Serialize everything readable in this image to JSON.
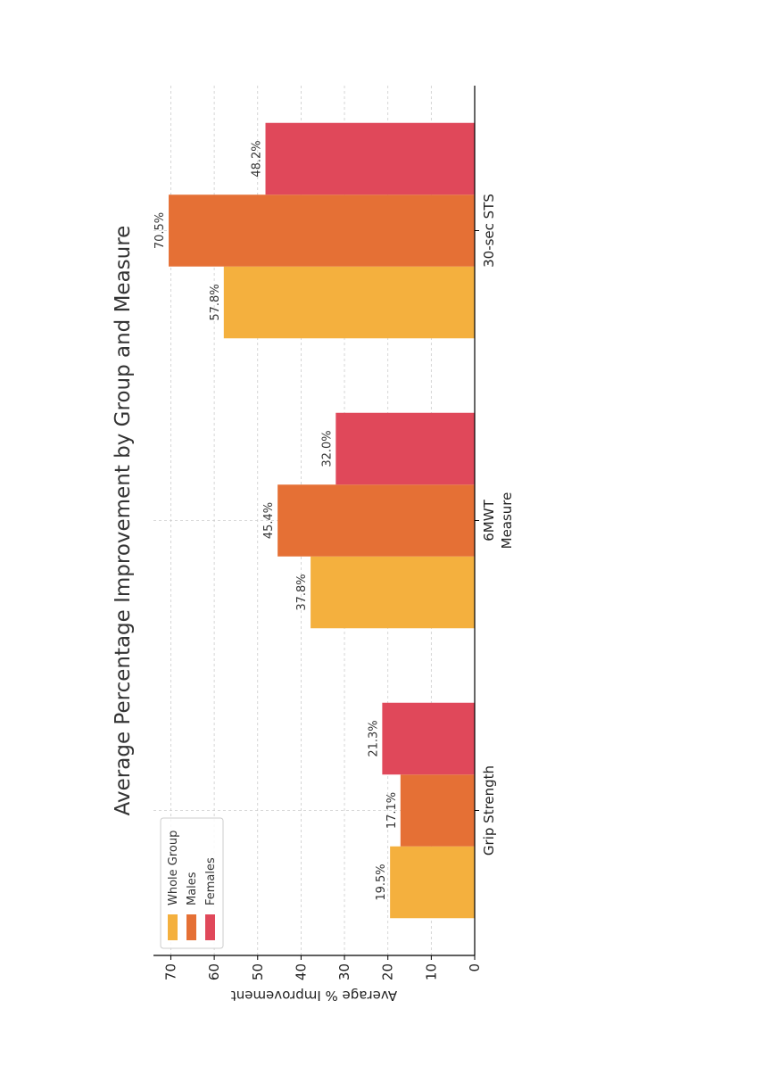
{
  "chart_data": {
    "type": "bar",
    "title": "Average Percentage Improvement by Group and Measure",
    "xlabel": "Measure",
    "ylabel": "Average % Improvement",
    "categories": [
      "Grip Strength",
      "6MWT",
      "30-sec STS"
    ],
    "series": [
      {
        "name": "Whole Group",
        "values": [
          19.5,
          37.8,
          57.8
        ],
        "color": "#F4B03E",
        "labels": [
          "19.5%",
          "37.8%",
          "57.8%"
        ]
      },
      {
        "name": "Males",
        "values": [
          17.1,
          45.4,
          70.5
        ],
        "color": "#E57035",
        "labels": [
          "17.1%",
          "45.4%",
          "70.5%"
        ]
      },
      {
        "name": "Females",
        "values": [
          21.3,
          32.0,
          48.2
        ],
        "color": "#E0485A",
        "labels": [
          "21.3%",
          "32.0%",
          "48.2%"
        ]
      }
    ],
    "yticks": [
      "0",
      "10",
      "20",
      "30",
      "40",
      "50",
      "60",
      "70"
    ],
    "ylim": [
      0,
      74
    ],
    "grid": true,
    "legend_position": "upper-left"
  }
}
